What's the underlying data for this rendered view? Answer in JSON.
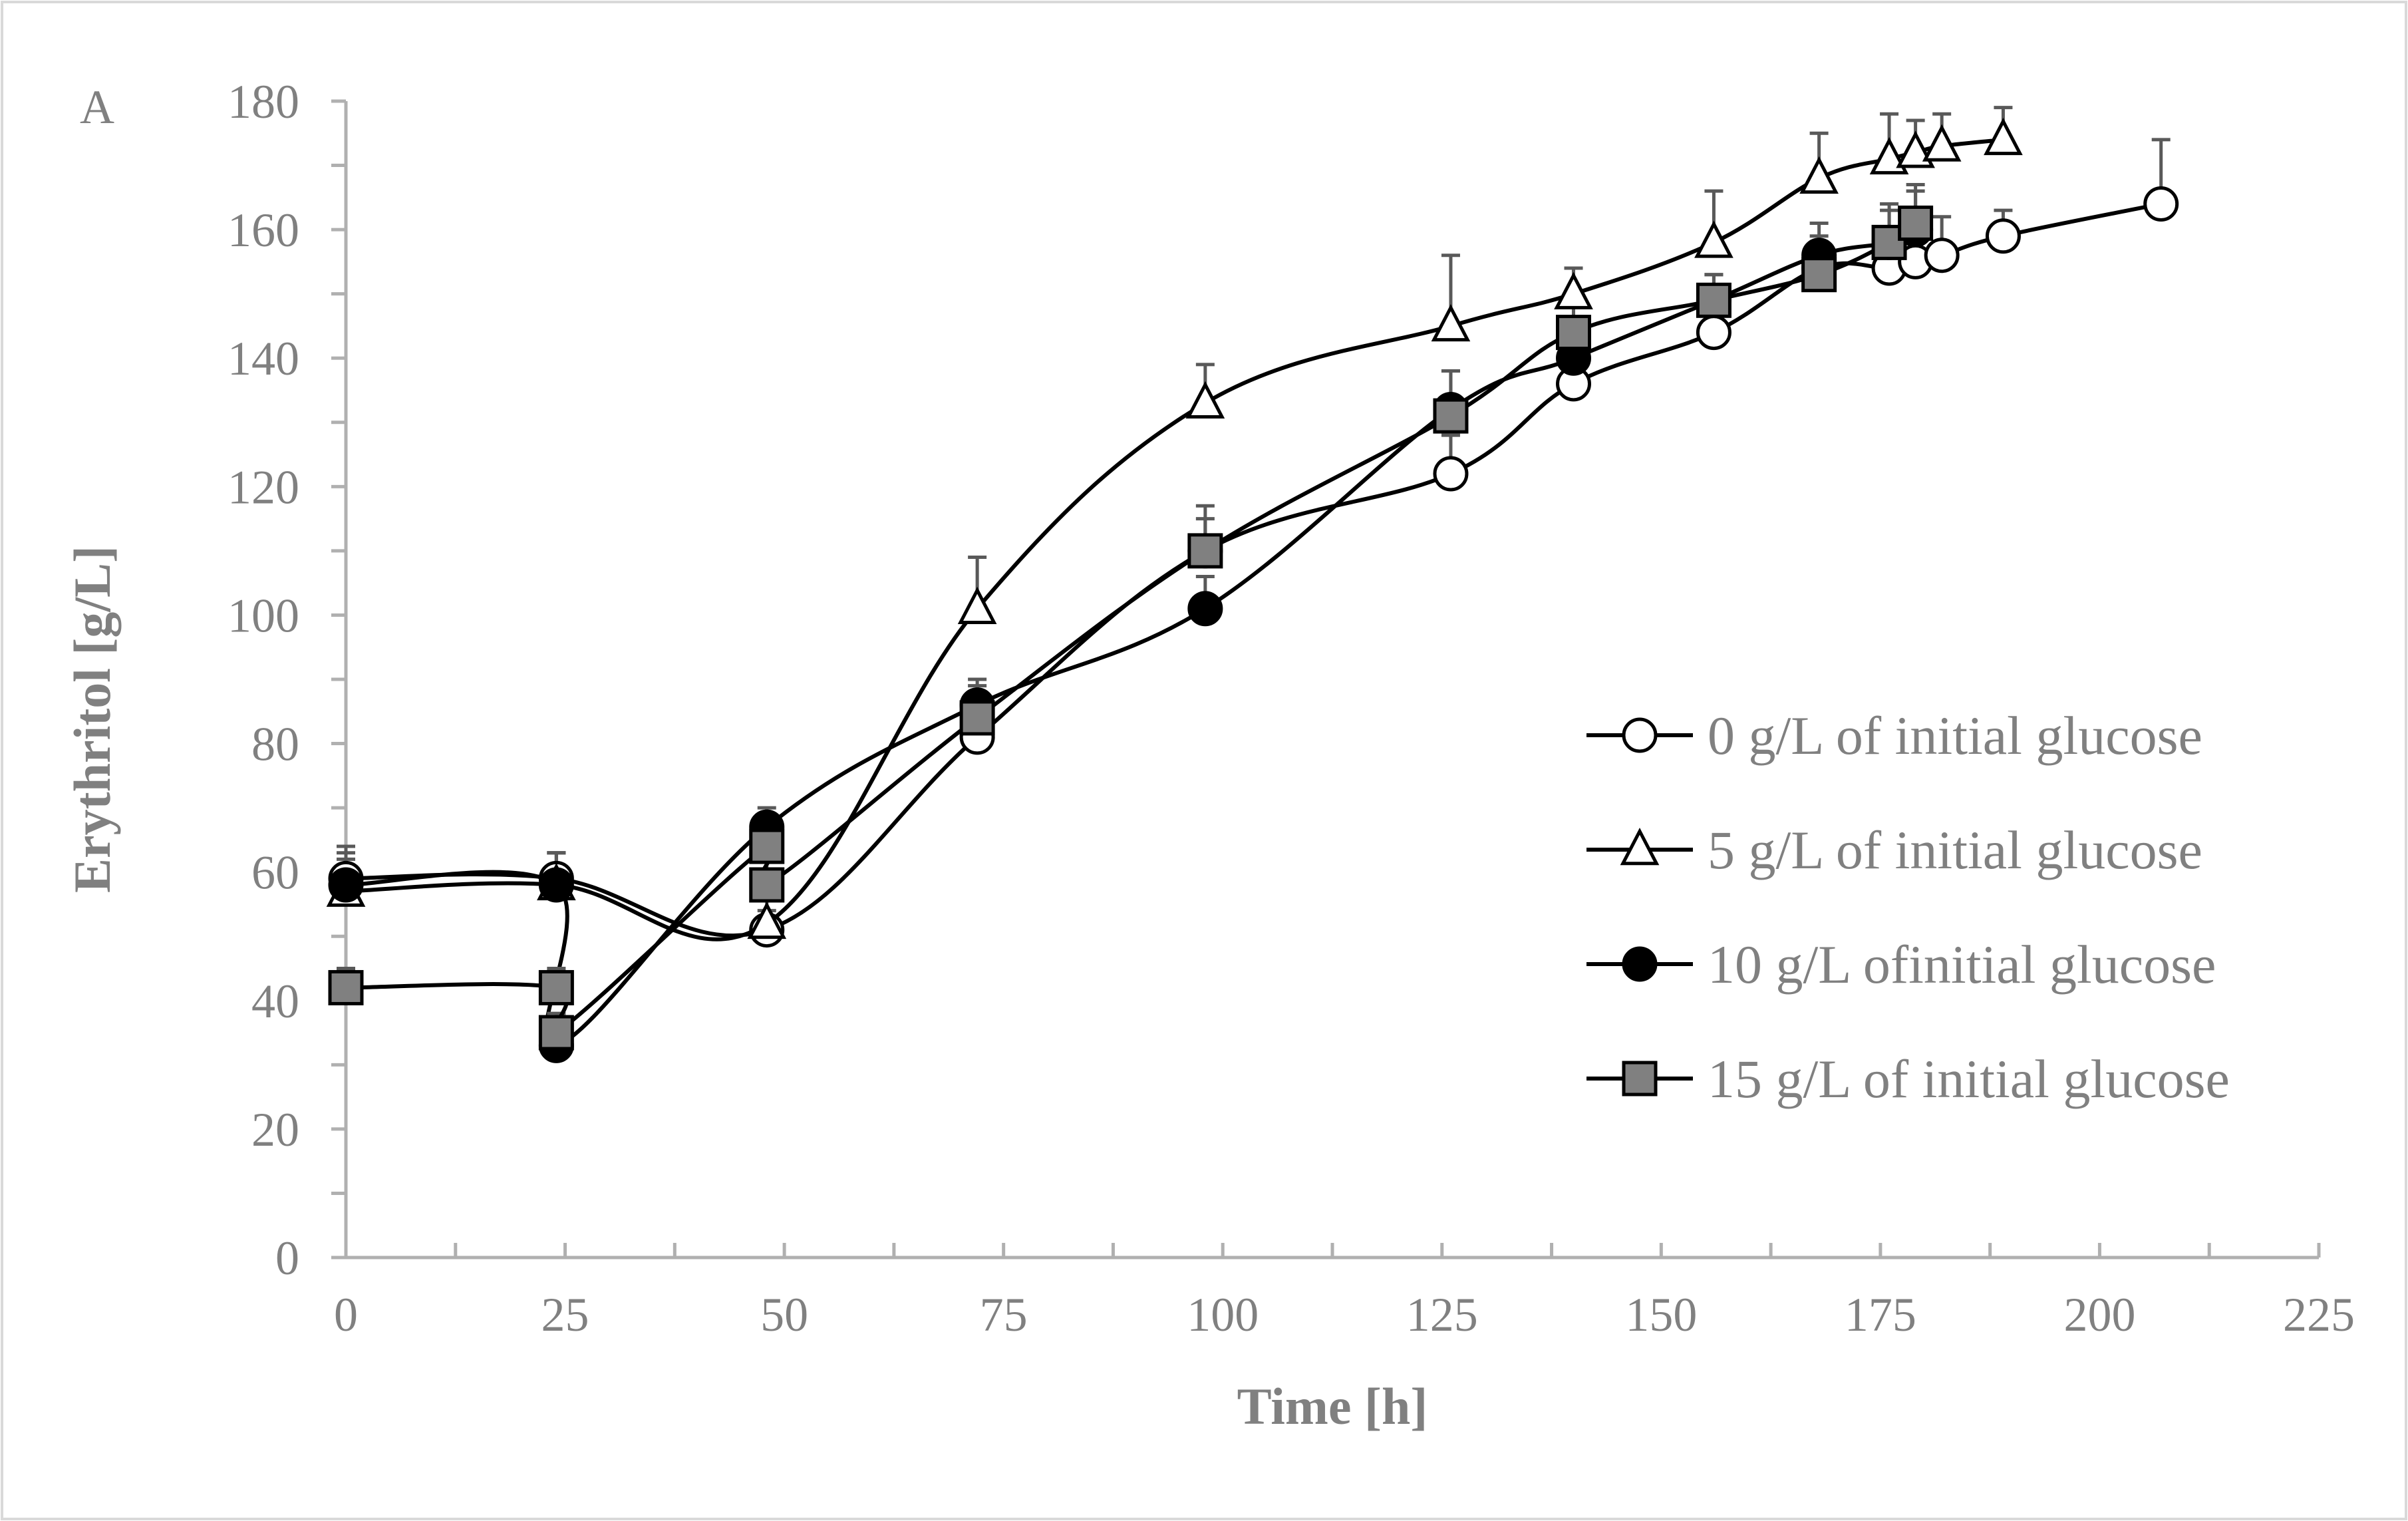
{
  "chart_data": {
    "type": "line",
    "panel_label": "A",
    "title": "",
    "xlabel": "Time [h]",
    "ylabel": "Erythritol [g/L]",
    "xlim": [
      0,
      225
    ],
    "ylim": [
      0,
      180
    ],
    "x_ticks": [
      0,
      25,
      50,
      75,
      100,
      125,
      150,
      175,
      200,
      225
    ],
    "x_minor_step": 12.5,
    "y_ticks": [
      0,
      20,
      40,
      60,
      80,
      100,
      120,
      140,
      160,
      180
    ],
    "y_minor_step": 10,
    "grid": false,
    "legend_position": "center-right",
    "colors": {
      "axis": "#b0b0b0",
      "text": "#808080",
      "line": "#000000",
      "error_bar": "#595959",
      "square_fill": "#808080",
      "circle_fill_dark": "#000000",
      "open_fill": "#ffffff",
      "frame": "#d9d9d9"
    },
    "series": [
      {
        "name": "0 g/L of initial glucose",
        "marker": "open-circle",
        "x": [
          0,
          24,
          48,
          72,
          98,
          126,
          140,
          156,
          168,
          176,
          179,
          182,
          189,
          207
        ],
        "y": [
          59,
          59,
          51,
          81,
          110,
          122,
          136,
          144,
          154,
          154,
          155,
          156,
          159,
          164
        ],
        "err": [
          5,
          4,
          3,
          6,
          5,
          6,
          4,
          4,
          4,
          5,
          8,
          6,
          4,
          10
        ]
      },
      {
        "name": "5 g/L of initial glucose",
        "marker": "open-triangle",
        "x": [
          0,
          24,
          48,
          72,
          98,
          126,
          140,
          156,
          168,
          176,
          179,
          182,
          189
        ],
        "y": [
          57,
          58,
          52,
          101,
          133,
          145,
          150,
          158,
          168,
          171,
          172,
          173,
          174
        ],
        "err": [
          5,
          5,
          4,
          8,
          6,
          11,
          4,
          8,
          7,
          7,
          5,
          5,
          5
        ]
      },
      {
        "name": "10 g/L ofinitial glucose",
        "marker": "filled-circle",
        "x": [
          0,
          24,
          24,
          48,
          72,
          98,
          126,
          140,
          156,
          168,
          176,
          179
        ],
        "y": [
          58,
          58,
          33,
          67,
          86,
          101,
          132,
          140,
          149,
          156,
          158,
          160
        ],
        "err": [
          5,
          5,
          3,
          3,
          4,
          5,
          6,
          5,
          4,
          5,
          5,
          6
        ]
      },
      {
        "name": "15 g/L of initial glucose",
        "marker": "filled-square",
        "x": [
          0,
          24,
          24,
          48,
          48,
          72,
          98,
          126,
          140,
          156,
          168,
          176,
          179
        ],
        "y": [
          42,
          42,
          35,
          64,
          58,
          84,
          110,
          131,
          144,
          149,
          153,
          158,
          161
        ],
        "err": [
          3,
          3,
          3,
          4,
          4,
          5,
          7,
          7,
          4,
          4,
          6,
          6,
          6
        ]
      }
    ]
  }
}
